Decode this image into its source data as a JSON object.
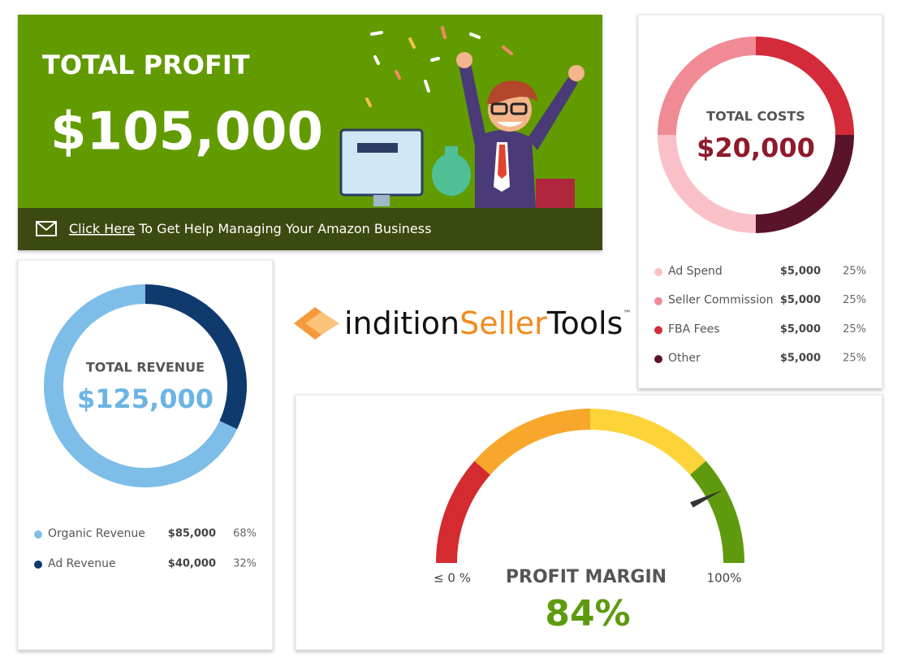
{
  "profit_card": {
    "title": "TOTAL PROFIT",
    "amount": "$105,000",
    "link_text": "Click Here",
    "banner_text": "To Get Help Managing Your Amazon Business"
  },
  "costs_chart": {
    "type": "donut",
    "title": "TOTAL COSTS",
    "total": "$20,000",
    "categories": [
      "Ad Spend",
      "Seller Commission",
      "FBA Fees",
      "Other"
    ],
    "amounts": [
      "$5,000",
      "$5,000",
      "$5,000",
      "$5,000"
    ],
    "values": [
      25,
      25,
      25,
      25
    ],
    "value_labels": [
      "25%",
      "25%",
      "25%",
      "25%"
    ],
    "colors": [
      "#f9c1c7",
      "#f08a94",
      "#d42b3b",
      "#5a1429"
    ]
  },
  "revenue_chart": {
    "type": "donut",
    "title": "TOTAL REVENUE",
    "total": "$125,000",
    "categories": [
      "Organic Revenue",
      "Ad Revenue"
    ],
    "amounts": [
      "$85,000",
      "$40,000"
    ],
    "values": [
      68,
      32
    ],
    "value_labels": [
      "68%",
      "32%"
    ],
    "colors": [
      "#7dbde8",
      "#0f3a6e"
    ]
  },
  "logo": {
    "part1": "indition",
    "part2": "Seller",
    "part3": "Tools",
    "mark": "™"
  },
  "margin_gauge": {
    "type": "gauge",
    "title": "PROFIT MARGIN",
    "value": 84,
    "value_label": "84%",
    "lim": [
      0,
      100
    ],
    "ticks": [
      {
        "value": 0,
        "label": "≤ 0 %"
      },
      {
        "value": 100,
        "label": "100%"
      }
    ]
  }
}
